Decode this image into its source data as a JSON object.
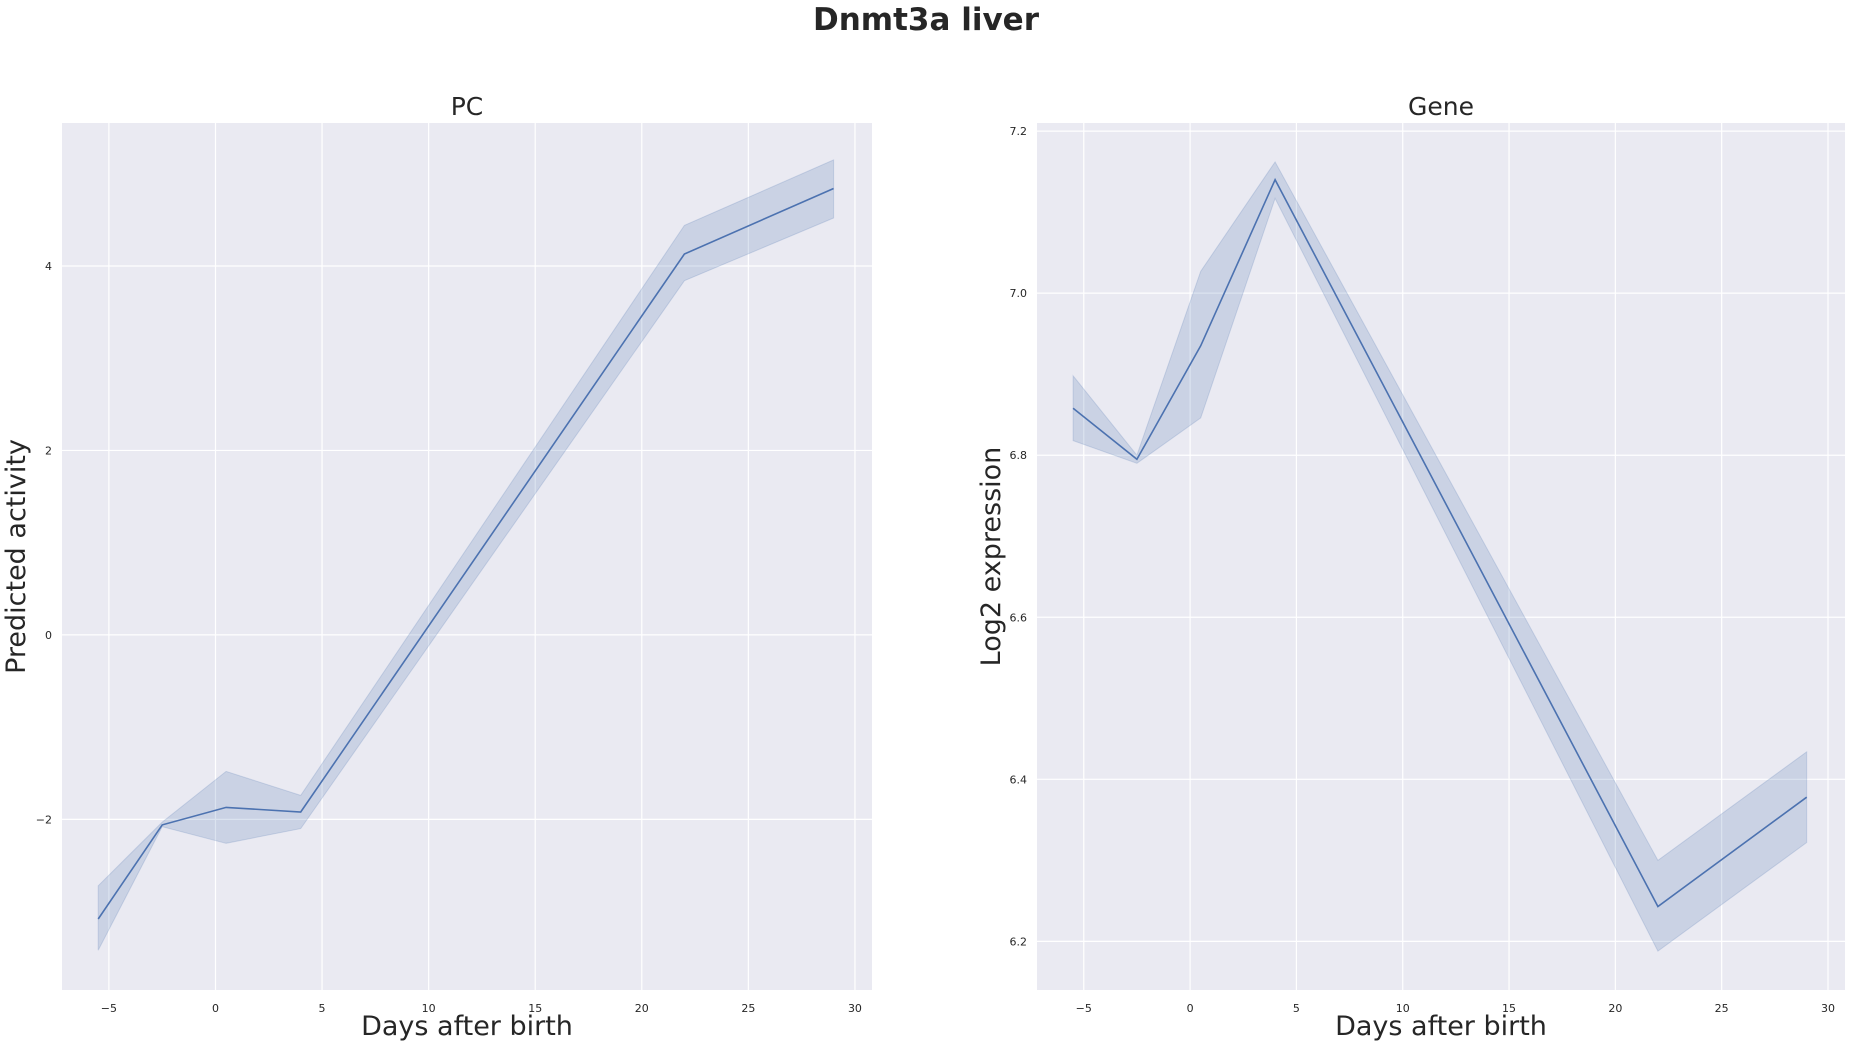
{
  "suptitle": "Dnmt3a liver",
  "chart_data": [
    {
      "type": "line",
      "title": "PC",
      "xlabel": "Days after birth",
      "ylabel": "Predicted activity",
      "xlim": [
        -7.2,
        30.8
      ],
      "ylim": [
        -3.85,
        5.55
      ],
      "xticks": [
        -5,
        0,
        5,
        10,
        15,
        20,
        25,
        30
      ],
      "yticks": [
        -2,
        0,
        2,
        4
      ],
      "xtick_labels": [
        "−5",
        "0",
        "5",
        "10",
        "15",
        "20",
        "25",
        "30"
      ],
      "ytick_labels": [
        "−2",
        "0",
        "2",
        "4"
      ],
      "grid": true,
      "x": [
        -5.5,
        -2.5,
        0.5,
        4,
        22,
        29
      ],
      "y": [
        -3.08,
        -2.06,
        -1.87,
        -1.92,
        4.13,
        4.84
      ],
      "ci_low": [
        -3.42,
        -2.08,
        -2.26,
        -2.1,
        3.84,
        4.52
      ],
      "ci_high": [
        -2.72,
        -2.03,
        -1.48,
        -1.74,
        4.44,
        5.15
      ],
      "color": "#4c72b0"
    },
    {
      "type": "line",
      "title": "Gene",
      "xlabel": "Days after birth",
      "ylabel": "Log2 expression",
      "xlim": [
        -7.2,
        30.8
      ],
      "ylim": [
        6.14,
        7.21
      ],
      "xticks": [
        -5,
        0,
        5,
        10,
        15,
        20,
        25,
        30
      ],
      "yticks": [
        6.2,
        6.4,
        6.6,
        6.8,
        7.0,
        7.2
      ],
      "xtick_labels": [
        "−5",
        "0",
        "5",
        "10",
        "15",
        "20",
        "25",
        "30"
      ],
      "ytick_labels": [
        "6.2",
        "6.4",
        "6.6",
        "6.8",
        "7.0",
        "7.2"
      ],
      "grid": true,
      "x": [
        -5.5,
        -2.5,
        0.5,
        4,
        22,
        29
      ],
      "y": [
        6.858,
        6.795,
        6.935,
        7.14,
        6.243,
        6.378
      ],
      "ci_low": [
        6.818,
        6.79,
        6.846,
        7.117,
        6.188,
        6.322
      ],
      "ci_high": [
        6.898,
        6.8,
        7.027,
        7.162,
        6.3,
        6.434
      ],
      "color": "#4c72b0"
    }
  ]
}
